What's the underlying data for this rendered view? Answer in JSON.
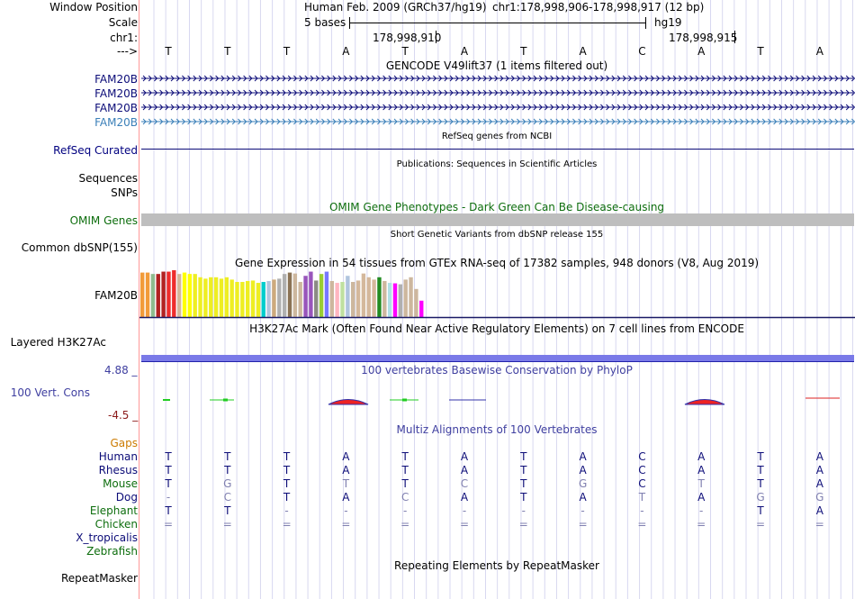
{
  "header": {
    "window_position_label": "Window Position",
    "scale_label": "Scale",
    "chrom_label": "chr1:",
    "arrow_label": "--->",
    "assembly_text": "Human Feb. 2009 (GRCh37/hg19)",
    "position_text": "chr1:178,998,906-178,998,917 (12 bp)",
    "scale_text": "5 bases",
    "db_text": "hg19",
    "coord1": "178,998,910",
    "coord2": "178,998,915"
  },
  "sequence": [
    "T",
    "T",
    "T",
    "A",
    "T",
    "A",
    "T",
    "A",
    "C",
    "A",
    "T",
    "A"
  ],
  "tracks": {
    "gencode": {
      "title": "GENCODE V49lift37 (1 items filtered out)",
      "items": [
        "FAM20B",
        "FAM20B",
        "FAM20B",
        "FAM20B"
      ]
    },
    "refseq": {
      "label": "RefSeq Curated",
      "title": "RefSeq genes from NCBI"
    },
    "publications": {
      "label": "Sequences",
      "title": "Publications: Sequences in Scientific Articles"
    },
    "snps": {
      "label": "SNPs"
    },
    "omim": {
      "label": "OMIM Genes",
      "title": "OMIM Gene Phenotypes - Dark Green Can Be Disease-causing"
    },
    "dbsnp": {
      "label": "Common dbSNP(155)",
      "title": "Short Genetic Variants from dbSNP release 155"
    },
    "gtex": {
      "label": "FAM20B",
      "title": "Gene Expression in 54 tissues from GTEx RNA-seq of 17382 samples, 948 donors (V8, Aug 2019)"
    },
    "h3k27ac": {
      "label": "Layered H3K27Ac",
      "title": "H3K27Ac Mark (Often Found Near Active Regulatory Elements) on 7 cell lines from ENCODE"
    },
    "phylop": {
      "label": "100 Vert. Cons",
      "title": "100 vertebrates Basewise Conservation by PhyloP",
      "max": "4.88 _",
      "min": "-4.5 _"
    },
    "multiz": {
      "title": "Multiz Alignments of 100 Vertebrates",
      "gaps_label": "Gaps"
    },
    "repeatmasker": {
      "label": "RepeatMasker",
      "title": "Repeating Elements by RepeatMasker"
    }
  },
  "species": [
    {
      "name": "Human",
      "bases": [
        "T",
        "T",
        "T",
        "A",
        "T",
        "A",
        "T",
        "A",
        "C",
        "A",
        "T",
        "A"
      ]
    },
    {
      "name": "Rhesus",
      "bases": [
        "T",
        "T",
        "T",
        "A",
        "T",
        "A",
        "T",
        "A",
        "C",
        "A",
        "T",
        "A"
      ]
    },
    {
      "name": "Mouse",
      "bases": [
        "T",
        "G",
        "T",
        "T",
        "T",
        "C",
        "T",
        "G",
        "C",
        "T",
        "T",
        "A"
      ]
    },
    {
      "name": "Dog",
      "bases": [
        "-",
        "C",
        "T",
        "A",
        "C",
        "A",
        "T",
        "A",
        "T",
        "A",
        "G",
        "G"
      ]
    },
    {
      "name": "Elephant",
      "bases": [
        "T",
        "T",
        "-",
        "-",
        "-",
        "-",
        "-",
        "-",
        "-",
        "-",
        "T",
        "A"
      ]
    },
    {
      "name": "Chicken",
      "bases": [
        "=",
        "=",
        "=",
        "=",
        "=",
        "=",
        "=",
        "=",
        "=",
        "=",
        "=",
        "="
      ]
    },
    {
      "name": "X_tropicalis",
      "bases": []
    },
    {
      "name": "Zebrafish",
      "bases": []
    }
  ],
  "gtex_data": {
    "values": [
      0.95,
      0.95,
      0.92,
      0.92,
      0.97,
      0.97,
      1.0,
      0.92,
      0.95,
      0.92,
      0.92,
      0.85,
      0.82,
      0.85,
      0.85,
      0.82,
      0.85,
      0.8,
      0.75,
      0.75,
      0.77,
      0.78,
      0.73,
      0.75,
      0.77,
      0.8,
      0.82,
      0.92,
      0.95,
      0.93,
      0.75,
      0.88,
      0.97,
      0.78,
      0.92,
      0.97,
      0.77,
      0.73,
      0.75,
      0.88,
      0.75,
      0.78,
      0.93,
      0.85,
      0.8,
      0.85,
      0.77,
      0.73,
      0.72,
      0.7,
      0.8,
      0.85,
      0.6,
      0.35
    ],
    "colors": [
      "#f29b39",
      "#f29b39",
      "#8fbc8f",
      "#b22222",
      "#b22222",
      "#ee2c2c",
      "#ee2c2c",
      "#d4b89c",
      "#ffff00",
      "#ffff00",
      "#eeee22",
      "#eeee22",
      "#eeee22",
      "#eeee22",
      "#eeee22",
      "#eeee22",
      "#eeee22",
      "#eeee22",
      "#eeee22",
      "#eeee22",
      "#eeee22",
      "#eeee22",
      "#eeee22",
      "#00cdcd",
      "#b0c4de",
      "#cdaa7d",
      "#b0b0b0",
      "#b0b0b0",
      "#8b7355",
      "#cdb79e",
      "#cdb79e",
      "#9955bb",
      "#9955bb",
      "#8b8b83",
      "#9acd32",
      "#7777ff",
      "#cdb79e",
      "#ffb6c1",
      "#c0e0a0",
      "#b0c4de",
      "#cdb79e",
      "#d4b89c",
      "#d4b89c",
      "#d4b89c",
      "#d4b89c",
      "#228b22",
      "#cdb79e",
      "#b0e0e6",
      "#ff00ff",
      "#b0b0b0",
      "#cdb79e",
      "#cdb79e",
      "#cdb79e",
      "#ff00ff"
    ]
  },
  "colors": {
    "grid": "#d8d8f0",
    "left_border": "#ff9999",
    "omim_bar": "#bebebe",
    "h3k27ac_bar": "#7a7ae8",
    "gene_line": "#0c0c78"
  }
}
